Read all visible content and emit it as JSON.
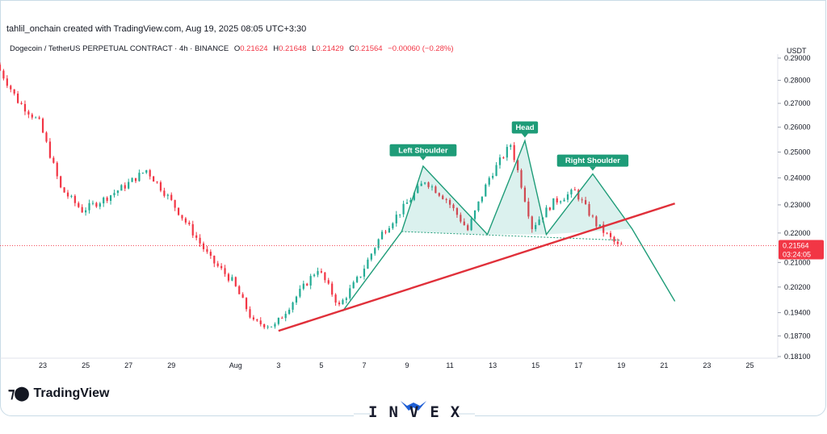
{
  "header": {
    "credit": "tahlil_onchain created with TradingView.com, Aug 19, 2025 08:05 UTC+3:30",
    "symbol": "Dogecoin / TetherUS PERPETUAL CONTRACT · 4h · BINANCE",
    "ohlc": [
      {
        "label": "O",
        "value": "0.21624"
      },
      {
        "label": "H",
        "value": "0.21648"
      },
      {
        "label": "L",
        "value": "0.21429"
      },
      {
        "label": "C",
        "value": "0.21564"
      }
    ],
    "change": "−0.00060 (−0.28%)",
    "currency": "USDT"
  },
  "price_tag": {
    "price": "0.21564",
    "countdown": "03:24:05"
  },
  "branding": {
    "tradingview": "TradingView",
    "watermark": "INVEX"
  },
  "colors": {
    "up": "#22ab94",
    "down": "#f23645",
    "pattern": "#1e9c78",
    "trendline": "#e0303a"
  },
  "chart_data": {
    "type": "candlestick",
    "y_axis_side": "right",
    "y_scale": "log",
    "ylim": [
      0.181,
      0.29
    ],
    "yticks": [
      "0.29000",
      "0.28000",
      "0.27000",
      "0.26000",
      "0.25000",
      "0.24000",
      "0.23000",
      "0.22000",
      "0.21000",
      "0.20200",
      "0.19400",
      "0.18700",
      "0.18100"
    ],
    "xlim": [
      "2025-07-21",
      "2025-08-26"
    ],
    "xticks": [
      "23",
      "25",
      "27",
      "29",
      "Aug",
      "3",
      "5",
      "7",
      "9",
      "11",
      "13",
      "15",
      "17",
      "19",
      "21",
      "23",
      "25"
    ],
    "price_path": [
      [
        "2025-07-21",
        0.287
      ],
      [
        "2025-07-22",
        0.271
      ],
      [
        "2025-07-23",
        0.262
      ],
      [
        "2025-07-24",
        0.236
      ],
      [
        "2025-07-25",
        0.228
      ],
      [
        "2025-07-26",
        0.232
      ],
      [
        "2025-07-27",
        0.237
      ],
      [
        "2025-07-28",
        0.243
      ],
      [
        "2025-07-29",
        0.233
      ],
      [
        "2025-07-30",
        0.222
      ],
      [
        "2025-07-31",
        0.211
      ],
      [
        "2025-08-01",
        0.204
      ],
      [
        "2025-08-02",
        0.191
      ],
      [
        "2025-08-03",
        0.19
      ],
      [
        "2025-08-04",
        0.199
      ],
      [
        "2025-08-05",
        0.208
      ],
      [
        "2025-08-06",
        0.196
      ],
      [
        "2025-08-07",
        0.206
      ],
      [
        "2025-08-08",
        0.22
      ],
      [
        "2025-08-09",
        0.229
      ],
      [
        "2025-08-10",
        0.239
      ],
      [
        "2025-08-11",
        0.232
      ],
      [
        "2025-08-12",
        0.221
      ],
      [
        "2025-08-13",
        0.24
      ],
      [
        "2025-08-14",
        0.253
      ],
      [
        "2025-08-15",
        0.222
      ],
      [
        "2025-08-16",
        0.231
      ],
      [
        "2025-08-17",
        0.235
      ],
      [
        "2025-08-18",
        0.223
      ],
      [
        "2025-08-19",
        0.2156
      ]
    ],
    "current_price": 0.21564,
    "patterns": {
      "name": "head-and-shoulders",
      "labels": [
        {
          "text": "Left Shoulder",
          "x": "2025-08-09 18:00",
          "y": 0.2455
        },
        {
          "text": "Head",
          "x": "2025-08-14 12:00",
          "y": 0.2545
        },
        {
          "text": "Right Shoulder",
          "x": "2025-08-17 16:00",
          "y": 0.2415
        }
      ],
      "zigzag": [
        [
          "2025-08-06 00:00",
          0.1945
        ],
        [
          "2025-08-08 18:00",
          0.2205
        ],
        [
          "2025-08-09 18:00",
          0.2445
        ],
        [
          "2025-08-12 18:00",
          0.2195
        ],
        [
          "2025-08-14 12:00",
          0.2545
        ],
        [
          "2025-08-15 12:00",
          0.2195
        ],
        [
          "2025-08-17 16:00",
          0.2415
        ],
        [
          "2025-08-19 12:00",
          0.2215
        ],
        [
          "2025-08-21 12:00",
          0.1975
        ]
      ],
      "neckline": [
        [
          "2025-08-08 18:00",
          0.2205
        ],
        [
          "2025-08-19 00:00",
          0.2175
        ]
      ],
      "trendline": [
        [
          "2025-08-03 00:00",
          0.1885
        ],
        [
          "2025-08-21 12:00",
          0.2305
        ]
      ]
    }
  }
}
